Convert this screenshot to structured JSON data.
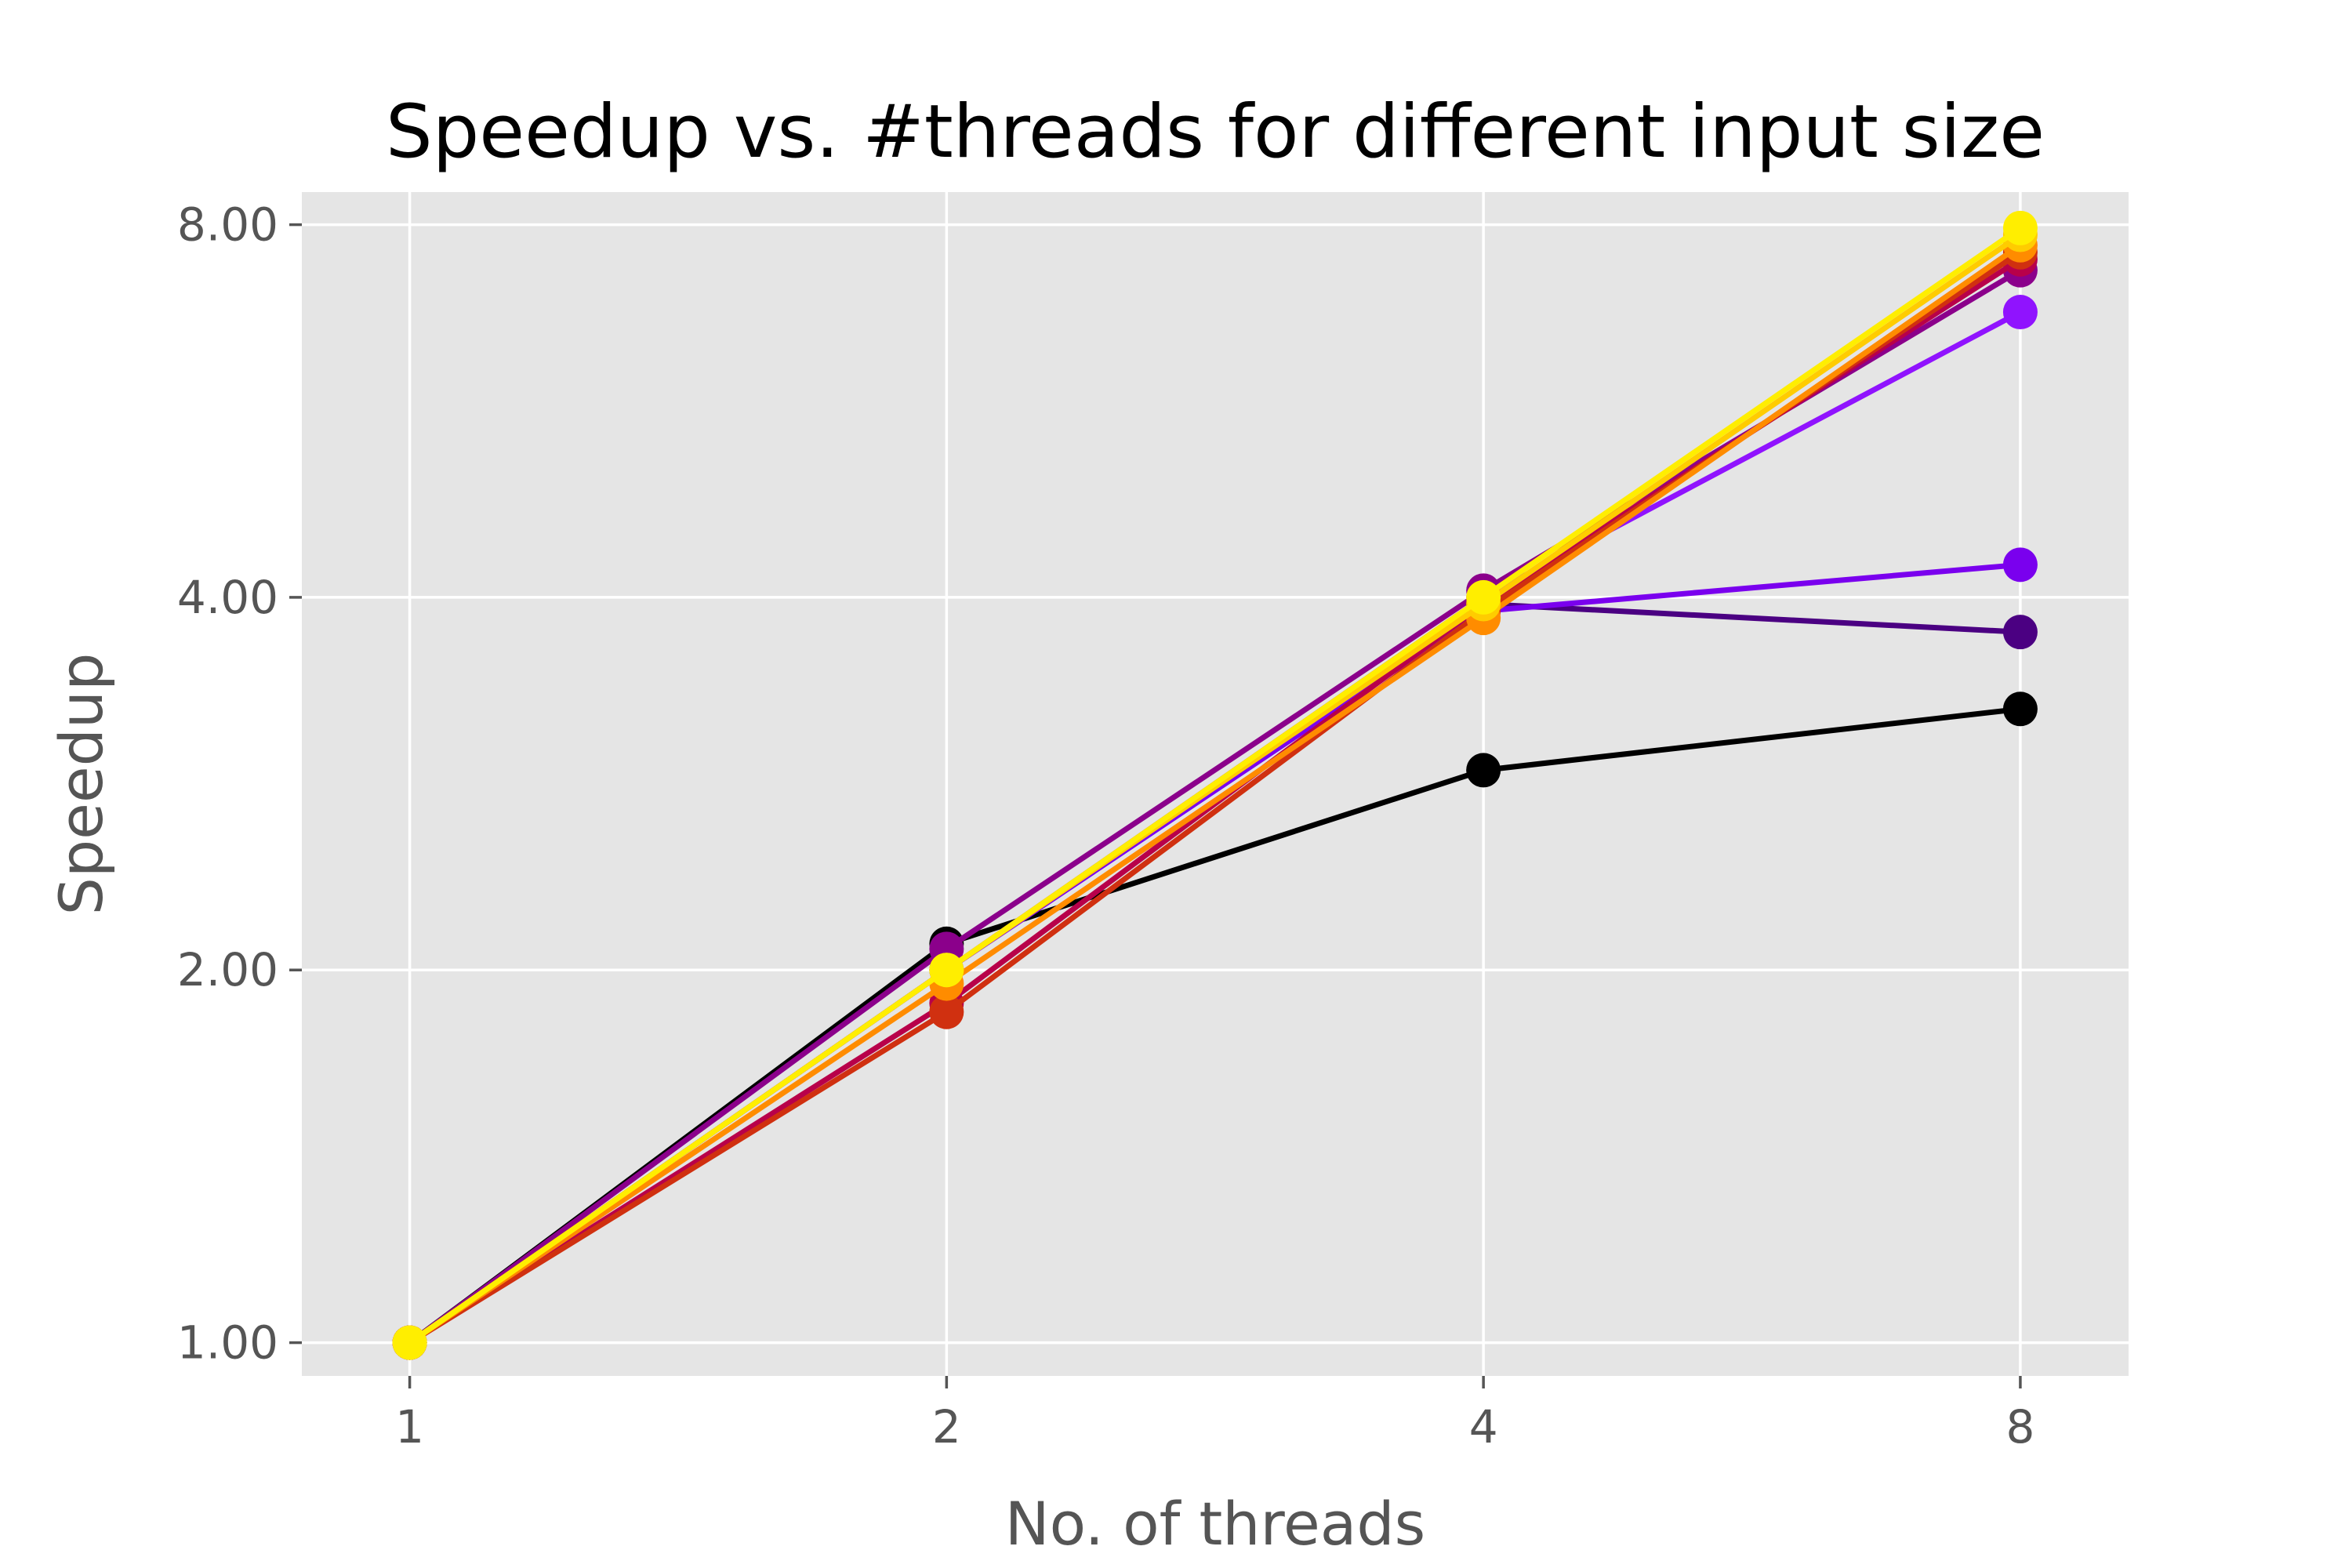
{
  "chart_data": {
    "type": "line",
    "title": "Speedup vs. #threads for different input size",
    "xlabel": "No. of threads",
    "ylabel": "Speedup",
    "x": [
      1,
      2,
      4,
      8
    ],
    "x_tick_labels": [
      "1",
      "2",
      "4",
      "8"
    ],
    "y_ticks": [
      1,
      2,
      4,
      8
    ],
    "y_tick_labels": [
      "1.00",
      "2.00",
      "4.00",
      "8.00"
    ],
    "x_scale": "log2",
    "y_scale": "log2",
    "xlim": [
      0.87,
      9.2
    ],
    "ylim": [
      0.94,
      8.5
    ],
    "grid": true,
    "legend": "none",
    "series": [
      {
        "color": "#000000",
        "values": [
          1.0,
          2.1,
          2.9,
          3.25
        ]
      },
      {
        "color": "#4b0082",
        "values": [
          1.0,
          2.0,
          3.95,
          3.75
        ]
      },
      {
        "color": "#7a00ee",
        "values": [
          1.0,
          2.0,
          3.9,
          4.25
        ]
      },
      {
        "color": "#9013fe",
        "values": [
          1.0,
          2.0,
          4.0,
          6.8
        ]
      },
      {
        "color": "#8b008b",
        "values": [
          1.0,
          2.08,
          4.05,
          7.35
        ]
      },
      {
        "color": "#b8004a",
        "values": [
          1.0,
          1.88,
          3.95,
          7.5
        ]
      },
      {
        "color": "#d03010",
        "values": [
          1.0,
          1.85,
          3.9,
          7.6
        ]
      },
      {
        "color": "#ff8c00",
        "values": [
          1.0,
          1.95,
          3.85,
          7.7
        ]
      },
      {
        "color": "#ffcc00",
        "values": [
          1.0,
          2.0,
          3.95,
          7.85
        ]
      },
      {
        "color": "#ffee00",
        "values": [
          1.0,
          2.0,
          4.0,
          7.95
        ]
      }
    ],
    "colors": {
      "plot_background": "#e5e5e5",
      "grid": "#ffffff",
      "tick_text": "#555555",
      "title_text": "#000000"
    }
  }
}
